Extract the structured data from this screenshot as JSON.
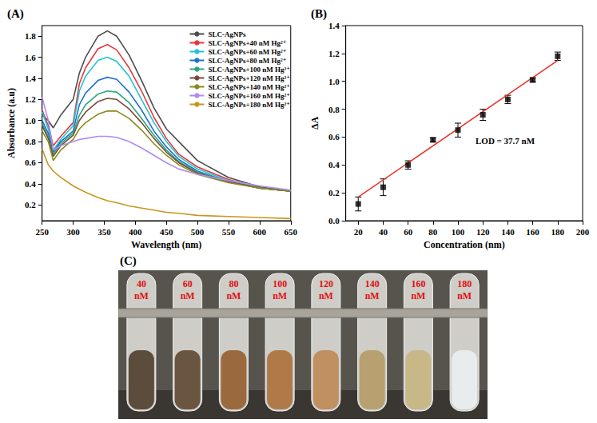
{
  "chart_data": [
    {
      "type": "line",
      "title": "(A)",
      "x_label": "Wavelength (nm)",
      "y_label": "Absorbance (a.u)",
      "x": [
        250,
        260,
        268,
        280,
        300,
        310,
        320,
        340,
        355,
        370,
        390,
        410,
        430,
        450,
        470,
        500,
        550,
        600,
        650
      ],
      "xlim": [
        250,
        650
      ],
      "xticks": [
        250,
        300,
        350,
        400,
        450,
        500,
        550,
        600,
        650
      ],
      "ylim": [
        0.05,
        1.9
      ],
      "yticks": [
        0.2,
        0.4,
        0.6,
        0.8,
        {
          "value": 1.0,
          "label": "1.0"
        },
        1.2,
        1.4,
        1.6,
        1.8
      ],
      "grid": false,
      "legend": "upper right",
      "marker": "none",
      "line_style": "solid",
      "series": [
        {
          "name": "SLC-AgNPs",
          "color": "#4d4d4d",
          "values": [
            1.05,
            1.0,
            0.93,
            1.05,
            1.2,
            1.45,
            1.6,
            1.8,
            1.85,
            1.8,
            1.62,
            1.38,
            1.12,
            0.92,
            0.8,
            0.62,
            0.46,
            0.37,
            0.33
          ]
        },
        {
          "name": "SLC-AgNPs+40 nM Hg²⁺",
          "color": "#e8363a",
          "values": [
            1.1,
            0.95,
            0.76,
            0.85,
            0.98,
            1.35,
            1.5,
            1.68,
            1.72,
            1.67,
            1.5,
            1.28,
            1.03,
            0.83,
            0.68,
            0.56,
            0.44,
            0.36,
            0.33
          ]
        },
        {
          "name": "SLC-AgNPs+60 nM Hg²⁺",
          "color": "#22c3d6",
          "values": [
            1.08,
            0.92,
            0.72,
            0.82,
            0.95,
            1.28,
            1.42,
            1.57,
            1.6,
            1.56,
            1.42,
            1.2,
            0.98,
            0.8,
            0.66,
            0.54,
            0.43,
            0.36,
            0.33
          ]
        },
        {
          "name": "SLC-AgNPs+80 nM Hg²⁺",
          "color": "#1f6fd1",
          "values": [
            1.0,
            0.88,
            0.7,
            0.8,
            0.9,
            1.15,
            1.26,
            1.38,
            1.41,
            1.39,
            1.27,
            1.1,
            0.9,
            0.75,
            0.63,
            0.52,
            0.42,
            0.36,
            0.33
          ]
        },
        {
          "name": "SLC-AgNPs+100 nM Hg²⁺",
          "color": "#2aa87a",
          "values": [
            0.97,
            0.85,
            0.68,
            0.78,
            0.88,
            1.05,
            1.15,
            1.25,
            1.28,
            1.27,
            1.17,
            1.02,
            0.86,
            0.72,
            0.61,
            0.51,
            0.42,
            0.36,
            0.33
          ]
        },
        {
          "name": "SLC-AgNPs+120 nM Hg²⁺",
          "color": "#7a4a3a",
          "values": [
            0.95,
            0.83,
            0.66,
            0.76,
            0.86,
            1.0,
            1.08,
            1.18,
            1.21,
            1.2,
            1.11,
            0.98,
            0.83,
            0.7,
            0.6,
            0.5,
            0.42,
            0.36,
            0.33
          ]
        },
        {
          "name": "SLC-AgNPs+140 nM Hg²⁺",
          "color": "#8a8a1a",
          "values": [
            0.9,
            0.8,
            0.62,
            0.72,
            0.82,
            0.92,
            0.98,
            1.06,
            1.09,
            1.09,
            1.02,
            0.91,
            0.78,
            0.67,
            0.58,
            0.49,
            0.41,
            0.36,
            0.33
          ]
        },
        {
          "name": "SLC-AgNPs+160 nM Hg²⁺",
          "color": "#b08cf0",
          "values": [
            1.22,
            1.0,
            0.72,
            0.76,
            0.8,
            0.82,
            0.83,
            0.85,
            0.85,
            0.84,
            0.8,
            0.74,
            0.67,
            0.6,
            0.54,
            0.49,
            0.43,
            0.38,
            0.34
          ]
        },
        {
          "name": "SLC-AgNPs+180 nM Hg²⁺",
          "color": "#c8961e",
          "values": [
            0.73,
            0.58,
            0.52,
            0.46,
            0.38,
            0.35,
            0.32,
            0.27,
            0.24,
            0.22,
            0.19,
            0.17,
            0.15,
            0.13,
            0.12,
            0.1,
            0.09,
            0.08,
            0.07
          ]
        }
      ]
    },
    {
      "type": "scatter",
      "title": "(B)",
      "x_label": "Concentration (nm)",
      "y_label": "ΔA",
      "xlim": [
        10,
        200
      ],
      "xticks": [
        20,
        40,
        60,
        80,
        100,
        120,
        140,
        160,
        180,
        200
      ],
      "ylim": [
        0,
        1.4
      ],
      "yticks": [
        {
          "value": 0,
          "label": "0.0"
        },
        0.2,
        0.4,
        0.6,
        0.8,
        {
          "value": 1.0,
          "label": "1.0"
        },
        1.2,
        1.4
      ],
      "grid": false,
      "annotations": [
        "LOD = 37.7 nM"
      ],
      "series": [
        {
          "type": "scatter",
          "marker": "square",
          "color": "#000000",
          "x": [
            20,
            40,
            60,
            80,
            100,
            120,
            140,
            160,
            180
          ],
          "values": [
            0.12,
            0.24,
            0.4,
            0.58,
            0.65,
            0.76,
            0.87,
            1.01,
            1.18
          ],
          "errors": [
            0.05,
            0.06,
            0.03,
            0.015,
            0.05,
            0.04,
            0.03,
            0.015,
            0.03
          ]
        },
        {
          "type": "line",
          "marker": "none",
          "line_style": "solid",
          "color": "#e8362c",
          "x": [
            20,
            180
          ],
          "values": [
            0.17,
            1.15
          ]
        }
      ]
    }
  ],
  "panel_c": {
    "title": "(C)",
    "tubes": [
      {
        "label": "40 nM",
        "color": "#5c4c3c"
      },
      {
        "label": "60 nM",
        "color": "#6a5540"
      },
      {
        "label": "80 nM",
        "color": "#9a6a3e"
      },
      {
        "label": "100 nM",
        "color": "#b07a48"
      },
      {
        "label": "120 nM",
        "color": "#c09060"
      },
      {
        "label": "140 nM",
        "color": "#b8a070"
      },
      {
        "label": "160 nM",
        "color": "#c8b888"
      },
      {
        "label": "180 nM",
        "color": "#e8ecec"
      }
    ]
  }
}
